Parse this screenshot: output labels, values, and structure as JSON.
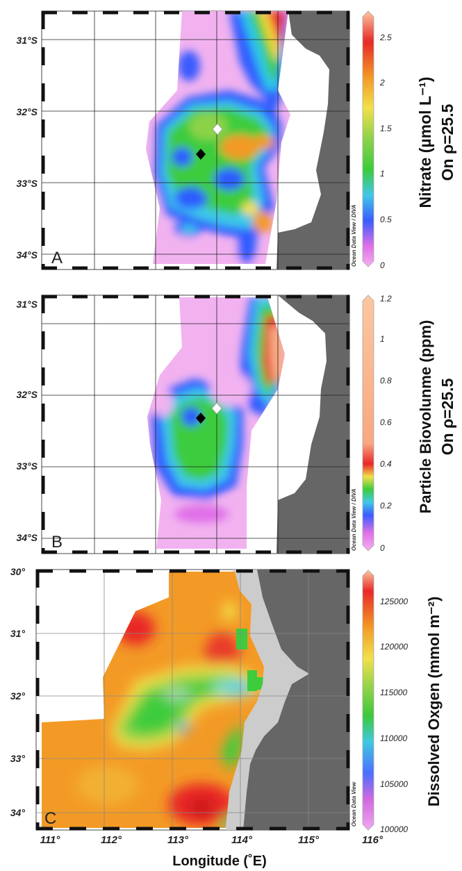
{
  "chart_data": [
    {
      "type": "heatmap",
      "panel_label": "A",
      "title": "Nitrate (µmol L⁻¹)",
      "subtitle": "On ρ=25.5",
      "y_ticks": [
        "31°S",
        "32°S",
        "33°S",
        "34°S"
      ],
      "colorbar": {
        "ticks": [
          "2.5",
          "2",
          "1.5",
          "1",
          "0.5",
          "0"
        ],
        "range": [
          0,
          2.7
        ]
      },
      "credit": "Ocean Data View / DIVA",
      "markers": [
        {
          "color": "white",
          "lon": 113.9,
          "lat": -32.3
        },
        {
          "color": "black",
          "lon": 113.6,
          "lat": -32.6
        }
      ]
    },
    {
      "type": "heatmap",
      "panel_label": "B",
      "title": "Particle Biovolunme (ppm)",
      "subtitle": "On ρ=25.5",
      "y_ticks": [
        "31°S",
        "32°S",
        "33°S",
        "34°S"
      ],
      "colorbar": {
        "ticks": [
          "1.2",
          "1",
          "0.8",
          "0.6",
          "0.4",
          "0.2",
          "0"
        ],
        "range": [
          0,
          1.2
        ]
      },
      "credit": "Ocean Data View / DIVA",
      "markers": [
        {
          "color": "white",
          "lon": 113.9,
          "lat": -32.3
        },
        {
          "color": "black",
          "lon": 113.6,
          "lat": -32.6
        }
      ]
    },
    {
      "type": "heatmap",
      "panel_label": "C",
      "title": "Dissolved Oxgen (mmol m⁻²)",
      "y_ticks": [
        "30°",
        "31°",
        "32°",
        "33°",
        "34°"
      ],
      "x_ticks": [
        "111°",
        "112°",
        "113°",
        "114°",
        "115°",
        "116°"
      ],
      "xlabel": "Longitude (˚E)",
      "colorbar": {
        "ticks": [
          "125000",
          "120000",
          "115000",
          "110000",
          "105000",
          "100000"
        ],
        "range": [
          100000,
          127500
        ]
      },
      "credit": "Ocean Data View"
    }
  ]
}
